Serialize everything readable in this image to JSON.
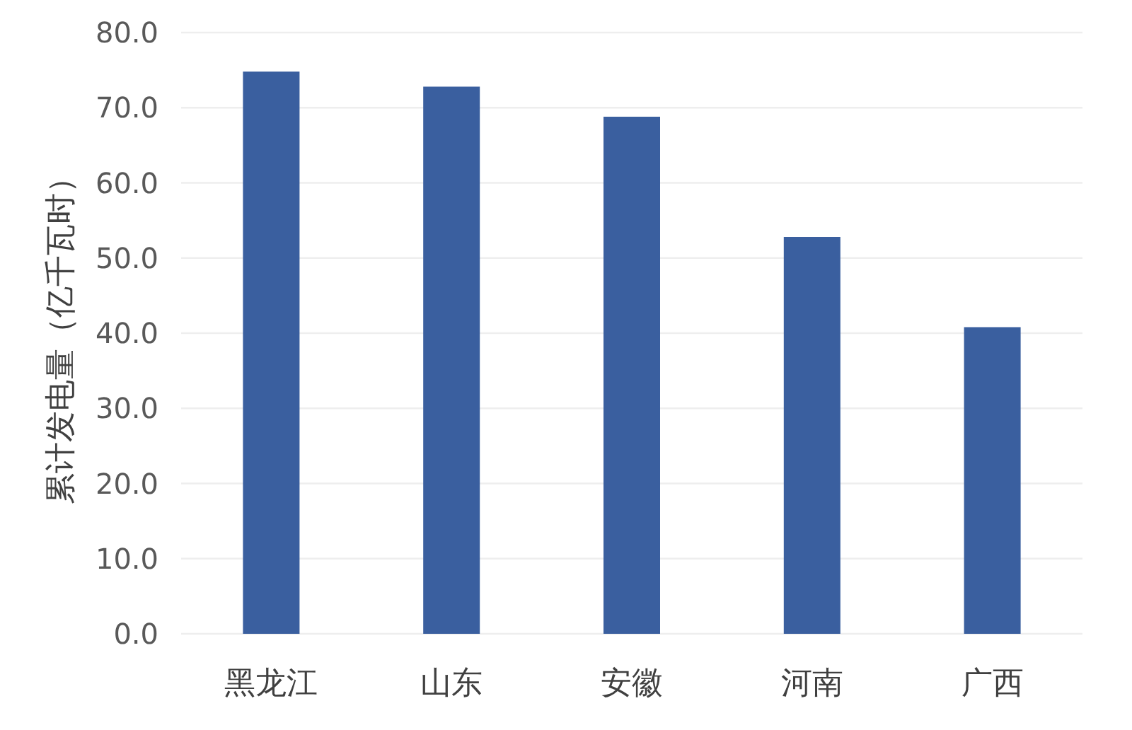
{
  "chart_data": {
    "type": "bar",
    "ylabel": "累计发电量（亿千瓦时）",
    "categories": [
      "黑龙江",
      "山东",
      "安徽",
      "河南",
      "广西"
    ],
    "values": [
      74.8,
      72.8,
      68.8,
      52.8,
      40.8
    ],
    "color": "#3a5f9f",
    "ylim": [
      0,
      80
    ],
    "yticks": [
      {
        "value": 0,
        "label": "0.0"
      },
      {
        "value": 10,
        "label": "10.0"
      },
      {
        "value": 20,
        "label": "20.0"
      },
      {
        "value": 30,
        "label": "30.0"
      },
      {
        "value": 40,
        "label": "40.0"
      },
      {
        "value": 50,
        "label": "50.0"
      },
      {
        "value": 60,
        "label": "60.0"
      },
      {
        "value": 70,
        "label": "70.0"
      },
      {
        "value": 80,
        "label": "80.0"
      }
    ],
    "grid": "y"
  }
}
